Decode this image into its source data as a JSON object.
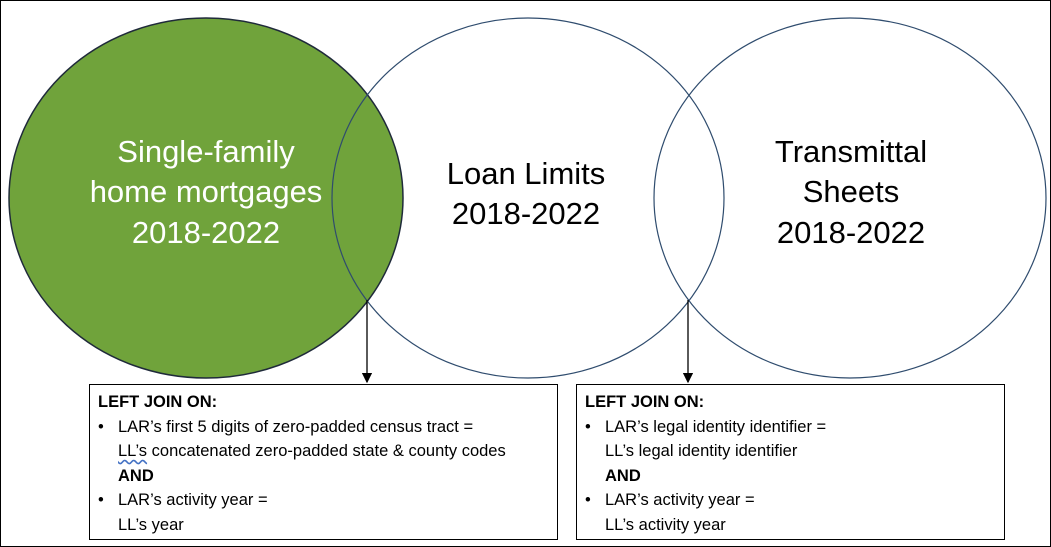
{
  "colors": {
    "highlight_fill": "#70a33b",
    "circle_stroke": "#2f4c6e",
    "highlight_stroke": "#1f2a3a"
  },
  "circles": [
    {
      "id": "single-family",
      "lines": [
        "Single-family",
        "home mortgages",
        "2018-2022"
      ],
      "filled": true
    },
    {
      "id": "loan-limits",
      "lines": [
        "Loan Limits",
        "2018-2022"
      ],
      "filled": false
    },
    {
      "id": "transmittal",
      "lines": [
        "Transmittal",
        "Sheets",
        "2018-2022"
      ],
      "filled": false
    }
  ],
  "joins": {
    "left": {
      "title": "LEFT JOIN ON:",
      "bullet1_line1": "LAR’s first 5 digits of zero-padded census tract =",
      "bullet1_line2_prefix": "LL’s",
      "bullet1_line2_rest": " concatenated zero-padded state & county codes",
      "and": "AND",
      "bullet2_line1": "LAR’s activity year =",
      "bullet2_line2": "LL’s year"
    },
    "right": {
      "title": "LEFT JOIN ON:",
      "bullet1_line1": "LAR’s legal identity identifier =",
      "bullet1_line2": "LL’s legal identity identifier",
      "and": "AND",
      "bullet2_line1": "LAR’s activity year =",
      "bullet2_line2": "LL’s activity year"
    }
  },
  "bullet_symbol": "•"
}
